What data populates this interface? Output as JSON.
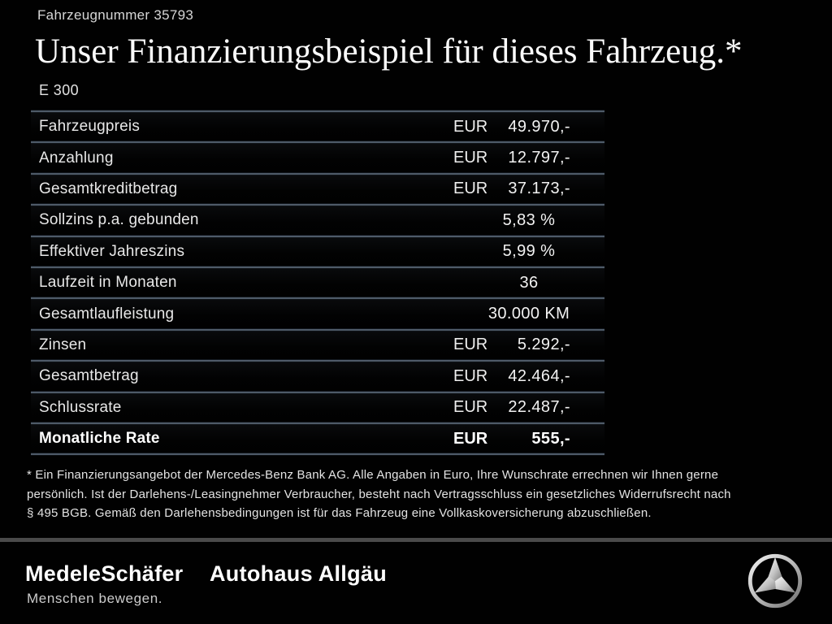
{
  "header": {
    "vehicle_number": "Fahrzeugnummer 35793",
    "title": "Unser Finanzierungsbeispiel für dieses Fahrzeug.*",
    "model": "E 300"
  },
  "table": {
    "rows": [
      {
        "label": "Fahrzeugpreis",
        "currency": "EUR",
        "value": "49.970,-",
        "bold": false
      },
      {
        "label": "Anzahlung",
        "currency": "EUR",
        "value": "12.797,-",
        "bold": false
      },
      {
        "label": "Gesamtkreditbetrag",
        "currency": "EUR",
        "value": "37.173,-",
        "bold": false
      },
      {
        "label": "Sollzins p.a. gebunden",
        "currency": "",
        "value": "5,83 %",
        "bold": false
      },
      {
        "label": "Effektiver Jahreszins",
        "currency": "",
        "value": "5,99 %",
        "bold": false
      },
      {
        "label": "Laufzeit in Monaten",
        "currency": "",
        "value": "36",
        "bold": false
      },
      {
        "label": "Gesamtlaufleistung",
        "currency": "",
        "value": "30.000 KM",
        "bold": false
      },
      {
        "label": "Zinsen",
        "currency": "EUR",
        "value": "5.292,-",
        "bold": false
      },
      {
        "label": "Gesamtbetrag",
        "currency": "EUR",
        "value": "42.464,-",
        "bold": false
      },
      {
        "label": "Schlussrate",
        "currency": "EUR",
        "value": "22.487,-",
        "bold": false
      },
      {
        "label": "Monatliche Rate",
        "currency": "EUR",
        "value": "555,-",
        "bold": true
      }
    ]
  },
  "footnote": {
    "lines": [
      "* Ein Finanzierungsangebot der Mercedes-Benz Bank AG. Alle Angaben in Euro, Ihre Wunschrate errechnen wir Ihnen gerne",
      "persönlich. Ist der Darlehens-/Leasingnehmer Verbraucher, besteht nach Vertragsschluss ein gesetzliches Widerrufsrecht nach",
      "§ 495 BGB. Gemäß den Darlehensbedingungen ist für das Fahrzeug eine Vollkaskoversicherung abzuschließen."
    ]
  },
  "footer": {
    "dealer1": "MedeleSchäfer",
    "dealer1_tagline": "Menschen bewegen.",
    "dealer2": "Autohaus Allgäu",
    "brand_icon": "mercedes-star-icon"
  },
  "colors": {
    "background": "#010101",
    "separator": "#4e5a68",
    "footer_divider": "#4a4a4a",
    "text_primary": "#f0f0f0",
    "text_secondary": "#cccccc"
  }
}
